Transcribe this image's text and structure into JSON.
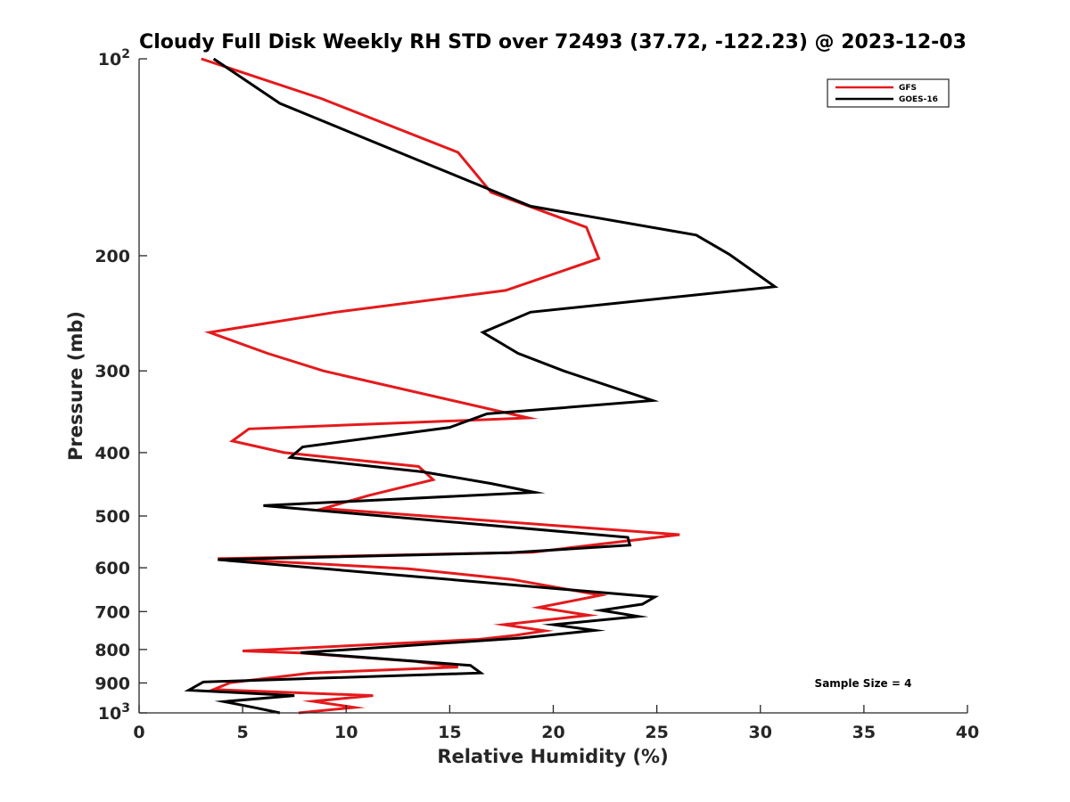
{
  "chart_data": {
    "type": "line",
    "title": "Cloudy Full Disk Weekly RH STD over 72493 (37.72, -122.23) @ 2023-12-03",
    "xlabel": "Relative Humidity (%)",
    "ylabel": "Pressure (mb)",
    "xlim": [
      0,
      40
    ],
    "ylim": [
      100,
      1000
    ],
    "y_scale": "log",
    "y_reversed": true,
    "grid": false,
    "legend_position": "top-right",
    "x_ticks": [
      0,
      5,
      10,
      15,
      20,
      25,
      30,
      35,
      40
    ],
    "x_tick_labels": [
      "0",
      "5",
      "10",
      "15",
      "20",
      "25",
      "30",
      "35",
      "40"
    ],
    "y_ticks": [
      100,
      200,
      300,
      400,
      500,
      600,
      700,
      800,
      900,
      1000
    ],
    "y_tick_labels": [
      {
        "base": "10",
        "exp": "2"
      },
      {
        "text": "200"
      },
      {
        "text": "300"
      },
      {
        "text": "400"
      },
      {
        "text": "500"
      },
      {
        "text": "600"
      },
      {
        "text": "700"
      },
      {
        "text": "800"
      },
      {
        "text": "900"
      },
      {
        "base": "10",
        "exp": "3"
      }
    ],
    "annotation": "Sample Size = 4",
    "series": [
      {
        "name": "GFS",
        "color": "#e41a1c",
        "points": [
          [
            3.0,
            100
          ],
          [
            8.8,
            115
          ],
          [
            15.4,
            139
          ],
          [
            17.0,
            160
          ],
          [
            21.6,
            181
          ],
          [
            22.2,
            202
          ],
          [
            17.7,
            226
          ],
          [
            9.5,
            244
          ],
          [
            3.4,
            262
          ],
          [
            6.2,
            282
          ],
          [
            8.9,
            300
          ],
          [
            18.8,
            354
          ],
          [
            5.3,
            368
          ],
          [
            4.5,
            384
          ],
          [
            7.0,
            400
          ],
          [
            13.5,
            420
          ],
          [
            14.2,
            440
          ],
          [
            11.1,
            465
          ],
          [
            8.9,
            487
          ],
          [
            26.1,
            534
          ],
          [
            19.0,
            568
          ],
          [
            3.8,
            581
          ],
          [
            13.0,
            602
          ],
          [
            18.0,
            625
          ],
          [
            22.3,
            661
          ],
          [
            19.3,
            690
          ],
          [
            21.7,
            709
          ],
          [
            17.6,
            733
          ],
          [
            19.6,
            749
          ],
          [
            18.2,
            761
          ],
          [
            16.4,
            772
          ],
          [
            5.0,
            804
          ],
          [
            7.8,
            810
          ],
          [
            13.3,
            834
          ],
          [
            15.4,
            851
          ],
          [
            8.3,
            869
          ],
          [
            4.4,
            899
          ],
          [
            3.6,
            921
          ],
          [
            11.3,
            941
          ],
          [
            8.4,
            960
          ],
          [
            10.4,
            981
          ],
          [
            7.7,
            1000
          ]
        ]
      },
      {
        "name": "GOES-16",
        "color": "#000000",
        "points": [
          [
            3.6,
            100
          ],
          [
            6.8,
            117
          ],
          [
            13.5,
            143
          ],
          [
            18.9,
            168
          ],
          [
            26.9,
            186
          ],
          [
            28.5,
            199
          ],
          [
            30.7,
            223
          ],
          [
            18.9,
            244
          ],
          [
            16.6,
            262
          ],
          [
            18.3,
            282
          ],
          [
            20.5,
            300
          ],
          [
            24.8,
            333
          ],
          [
            16.8,
            349
          ],
          [
            15.0,
            366
          ],
          [
            7.9,
            392
          ],
          [
            7.3,
            407
          ],
          [
            13.7,
            428
          ],
          [
            17.0,
            446
          ],
          [
            19.1,
            460
          ],
          [
            6.0,
            482
          ],
          [
            23.6,
            539
          ],
          [
            23.7,
            554
          ],
          [
            17.9,
            569
          ],
          [
            3.8,
            583
          ],
          [
            12.9,
            617
          ],
          [
            24.9,
            665
          ],
          [
            24.3,
            682
          ],
          [
            22.3,
            697
          ],
          [
            24.1,
            712
          ],
          [
            20.0,
            733
          ],
          [
            22.0,
            748
          ],
          [
            18.5,
            768
          ],
          [
            11.2,
            796
          ],
          [
            7.8,
            809
          ],
          [
            16.0,
            846
          ],
          [
            16.5,
            869
          ],
          [
            3.1,
            897
          ],
          [
            2.4,
            923
          ],
          [
            7.5,
            941
          ],
          [
            4.1,
            961
          ],
          [
            5.6,
            982
          ],
          [
            6.8,
            1000
          ]
        ]
      }
    ]
  }
}
